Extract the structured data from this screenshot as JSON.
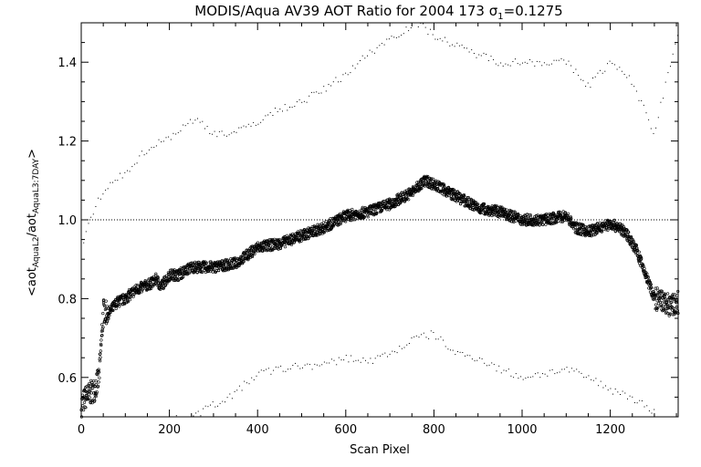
{
  "chart_data": {
    "type": "scatter",
    "title_main": "MODIS/Aqua AV39 AOT Ratio for 2004 173 ",
    "title_sigma": "σ",
    "title_sigma_sub": "1",
    "title_value": "=0.1275",
    "xlabel": "Scan Pixel",
    "ylabel_parts": {
      "open": "<aot",
      "sub1": "AquaL2",
      "mid": "/aot",
      "sub2": "AquaL3:7DAY",
      "close": ">"
    },
    "xlim": [
      0,
      1354
    ],
    "ylim": [
      0.5,
      1.5
    ],
    "x_ticks": [
      0,
      200,
      400,
      600,
      800,
      1000,
      1200
    ],
    "x_tick_labels": [
      "0",
      "200",
      "400",
      "600",
      "800",
      "1000",
      "1200"
    ],
    "y_ticks": [
      0.6,
      0.8,
      1.0,
      1.2,
      1.4
    ],
    "y_tick_labels": [
      "0.6",
      "0.8",
      "1.0",
      "1.2",
      "1.4"
    ],
    "reference_line": 1.0,
    "grid": false,
    "legend": "none",
    "mean_series_profile": {
      "x": [
        0,
        10,
        20,
        30,
        40,
        50,
        60,
        80,
        100,
        120,
        140,
        160,
        170,
        180,
        200,
        220,
        250,
        300,
        350,
        400,
        450,
        500,
        550,
        600,
        650,
        700,
        750,
        780,
        800,
        850,
        900,
        950,
        1000,
        1050,
        1100,
        1120,
        1150,
        1200,
        1220,
        1240,
        1260,
        1280,
        1300,
        1320,
        1340,
        1354
      ],
      "y": [
        0.53,
        0.55,
        0.56,
        0.57,
        0.6,
        0.77,
        0.76,
        0.79,
        0.8,
        0.82,
        0.83,
        0.84,
        0.85,
        0.83,
        0.86,
        0.86,
        0.88,
        0.88,
        0.89,
        0.93,
        0.94,
        0.96,
        0.98,
        1.01,
        1.02,
        1.04,
        1.07,
        1.1,
        1.09,
        1.06,
        1.03,
        1.02,
        1.0,
        1.0,
        1.01,
        0.98,
        0.97,
        0.99,
        0.98,
        0.96,
        0.92,
        0.86,
        0.8,
        0.79,
        0.78,
        0.79
      ]
    },
    "upper_series_profile": {
      "x": [
        0,
        20,
        40,
        60,
        100,
        150,
        200,
        250,
        270,
        300,
        350,
        400,
        450,
        500,
        550,
        600,
        650,
        700,
        760,
        800,
        850,
        900,
        950,
        1000,
        1050,
        1100,
        1150,
        1200,
        1250,
        1300,
        1354
      ],
      "y": [
        0.93,
        1.0,
        1.05,
        1.08,
        1.12,
        1.18,
        1.21,
        1.25,
        1.25,
        1.22,
        1.22,
        1.25,
        1.28,
        1.3,
        1.33,
        1.37,
        1.42,
        1.46,
        1.5,
        1.47,
        1.44,
        1.42,
        1.4,
        1.4,
        1.4,
        1.4,
        1.34,
        1.4,
        1.35,
        1.22,
        1.48
      ]
    },
    "lower_series_profile": {
      "x": [
        150,
        200,
        250,
        300,
        350,
        400,
        450,
        500,
        550,
        600,
        650,
        700,
        760,
        800,
        850,
        900,
        950,
        1000,
        1050,
        1100,
        1150,
        1200,
        1250,
        1300
      ],
      "y": [
        0.48,
        0.49,
        0.5,
        0.53,
        0.56,
        0.61,
        0.62,
        0.63,
        0.63,
        0.65,
        0.64,
        0.66,
        0.7,
        0.71,
        0.66,
        0.65,
        0.62,
        0.6,
        0.61,
        0.62,
        0.6,
        0.57,
        0.55,
        0.51
      ]
    }
  }
}
